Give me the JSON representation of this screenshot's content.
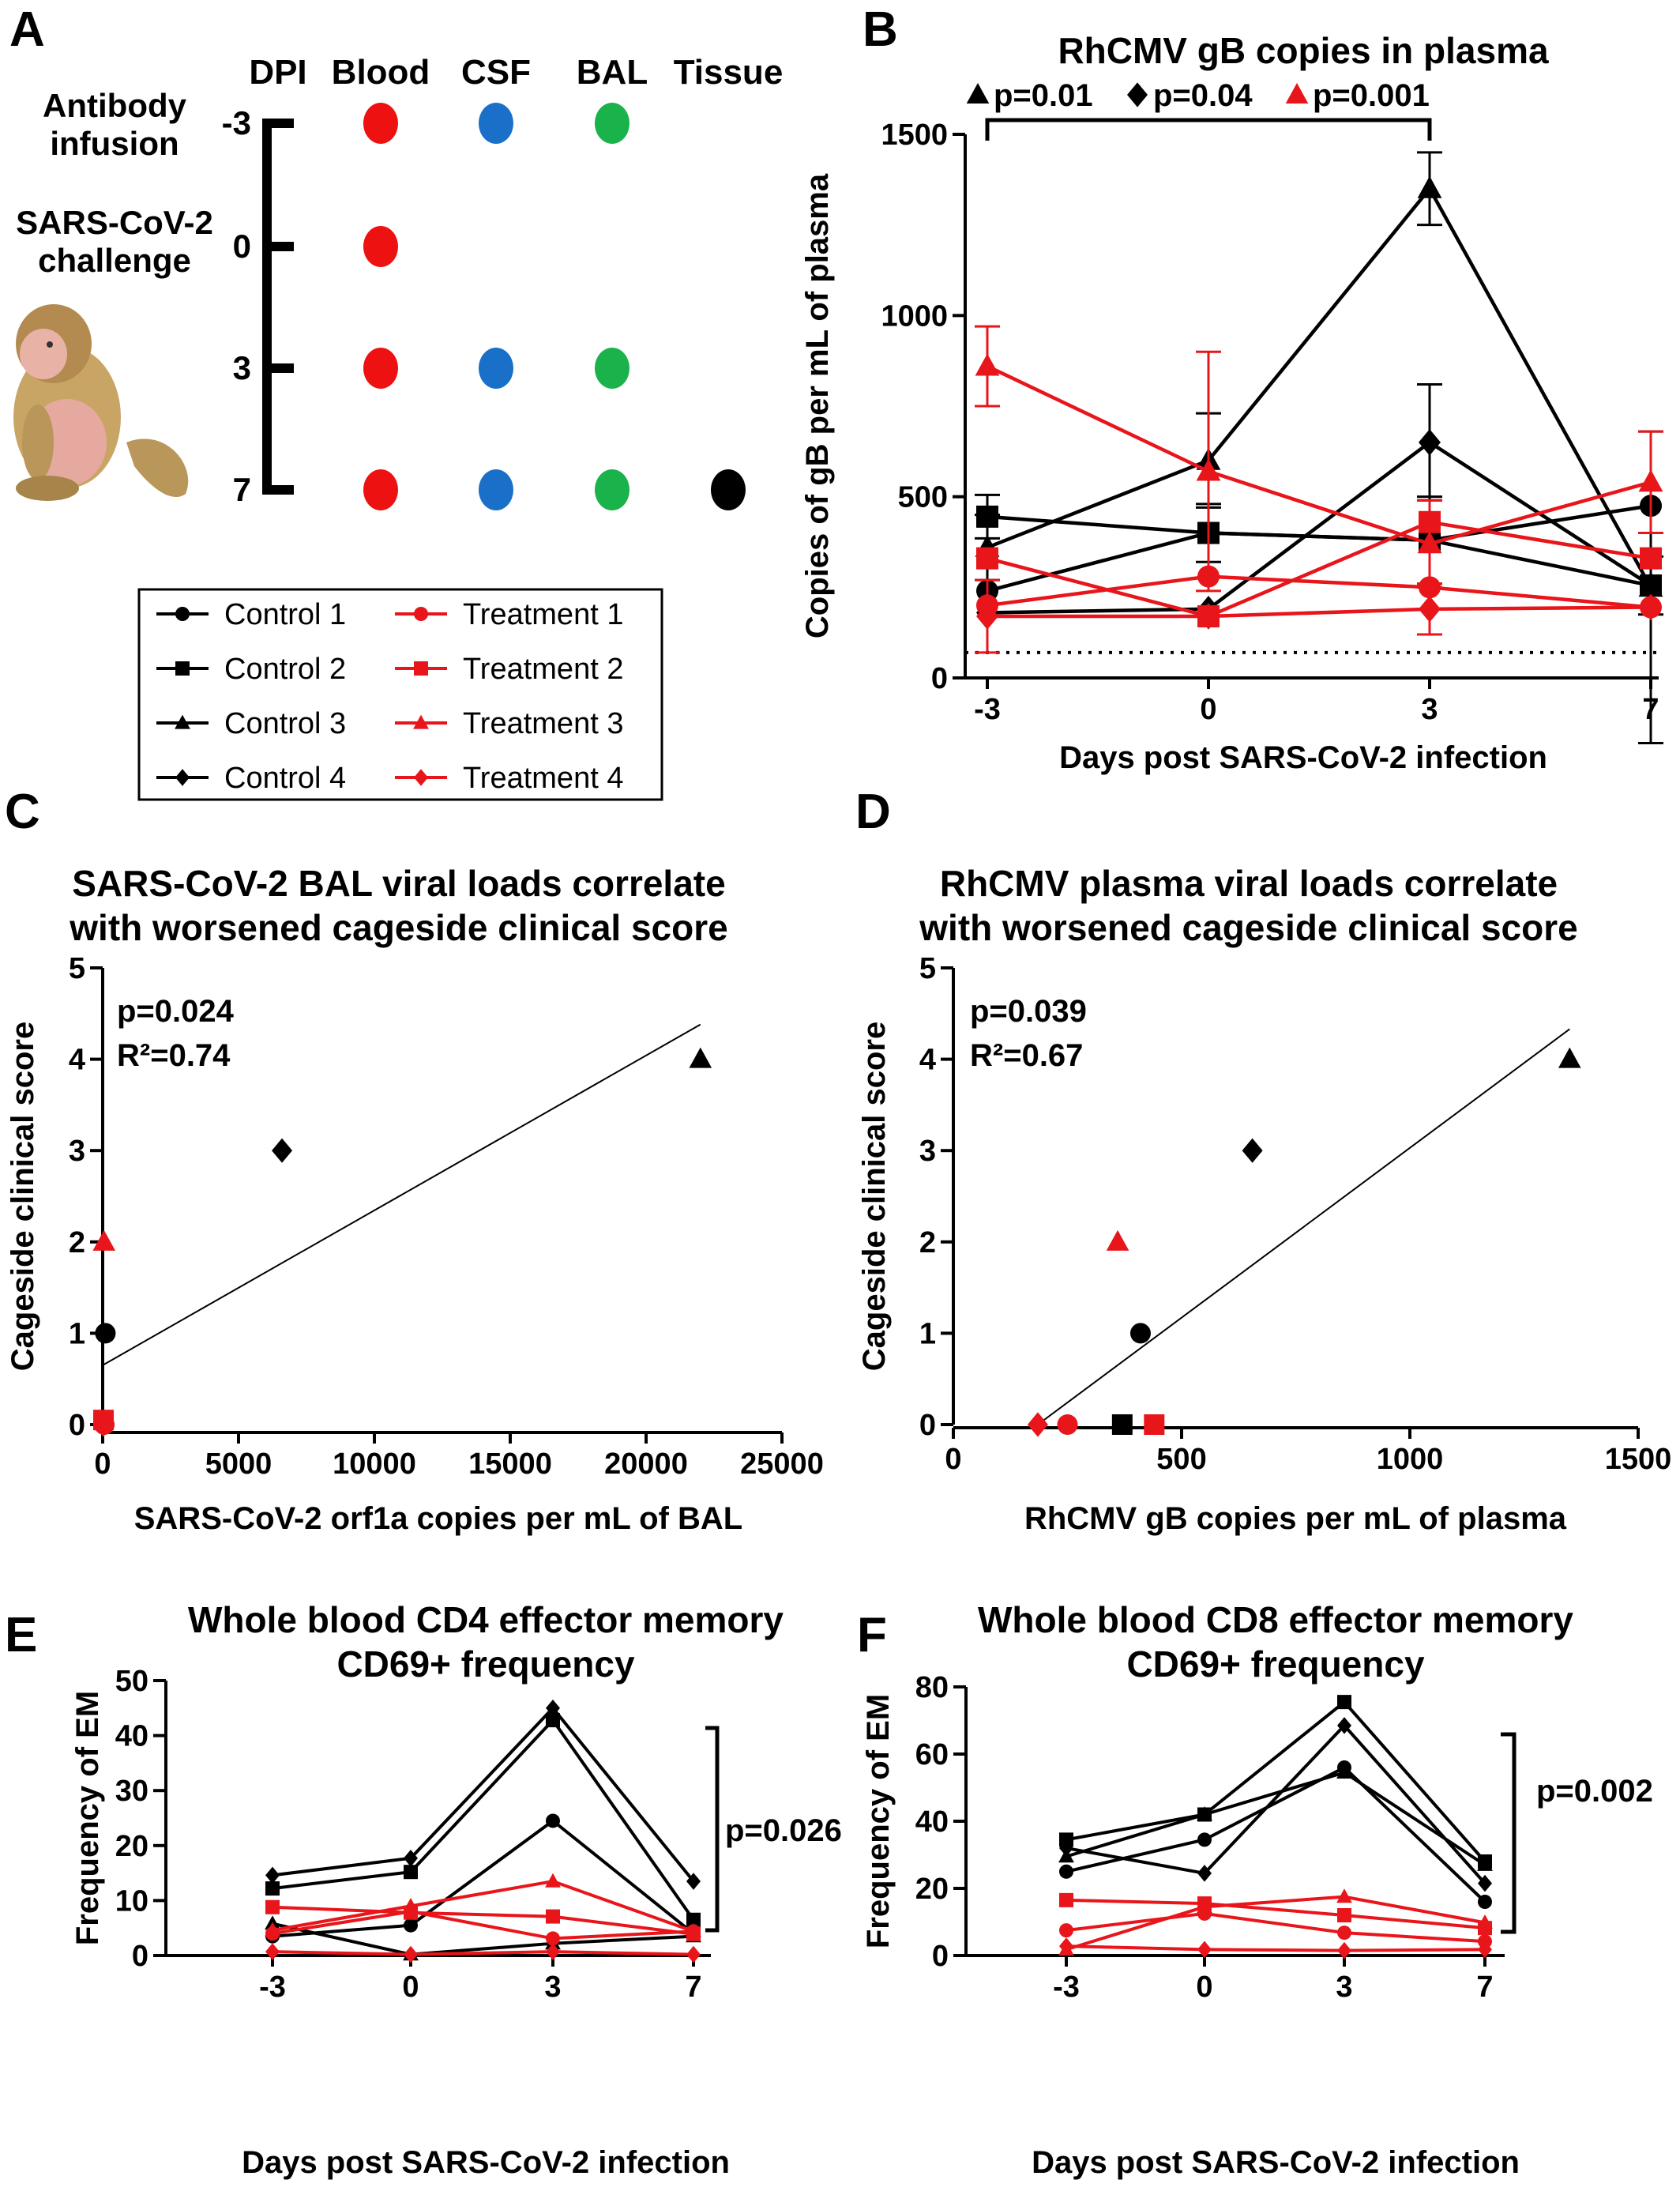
{
  "panel_labels": [
    "A",
    "B",
    "C",
    "D",
    "E",
    "F"
  ],
  "panel_a": {
    "headers": [
      "DPI",
      "Blood",
      "CSF",
      "BAL",
      "Tissue"
    ],
    "events": [
      "Antibody\ninfusion",
      "SARS-CoV-2\nchallenge"
    ],
    "rows": [
      {
        "dpi": "-3",
        "samples": [
          "Blood",
          "CSF",
          "BAL"
        ]
      },
      {
        "dpi": "0",
        "samples": [
          "Blood"
        ]
      },
      {
        "dpi": "3",
        "samples": [
          "Blood",
          "CSF",
          "BAL"
        ]
      },
      {
        "dpi": "7",
        "samples": [
          "Blood",
          "CSF",
          "BAL",
          "Tissue"
        ]
      }
    ],
    "sample_colors": {
      "Blood": "#ee1111",
      "CSF": "#1a6fc9",
      "BAL": "#19b24b",
      "Tissue": "#000000"
    }
  },
  "legend": [
    {
      "label": "Control 1",
      "marker": "circle",
      "color": "#000000"
    },
    {
      "label": "Treatment 1",
      "marker": "circle",
      "color": "#e8151b"
    },
    {
      "label": "Control 2",
      "marker": "square",
      "color": "#000000"
    },
    {
      "label": "Treatment 2",
      "marker": "square",
      "color": "#e8151b"
    },
    {
      "label": "Control 3",
      "marker": "triangle",
      "color": "#000000"
    },
    {
      "label": "Treatment 3",
      "marker": "triangle",
      "color": "#e8151b"
    },
    {
      "label": "Control 4",
      "marker": "diamond",
      "color": "#000000"
    },
    {
      "label": "Treatment 4",
      "marker": "diamond",
      "color": "#e8151b"
    }
  ],
  "colors": {
    "control": "#000000",
    "treatment": "#e8151b"
  },
  "chart_data": [
    {
      "id": "B",
      "type": "line",
      "title": "RhCMV gB copies in plasma",
      "xlabel": "Days post SARS-CoV-2 infection",
      "ylabel": "Copies of gB per mL of  plasma",
      "categories": [
        "-3",
        "0",
        "3",
        "7"
      ],
      "yticks": [
        "0",
        "500",
        "1000",
        "1500"
      ],
      "ylim": [
        0,
        1500
      ],
      "detection_limit": 70,
      "stats": [
        {
          "marker": "triangle",
          "color": "#000000",
          "text": "p=0.01"
        },
        {
          "marker": "diamond",
          "color": "#000000",
          "text": "p=0.04"
        },
        {
          "marker": "triangle",
          "color": "#e8151b",
          "text": "p=0.001"
        }
      ],
      "series": [
        {
          "name": "Control 1",
          "group": "control",
          "marker": "circle",
          "values": [
            240,
            400,
            380,
            475
          ],
          "errors": [
            0,
            0,
            0,
            0
          ]
        },
        {
          "name": "Control 2",
          "group": "control",
          "marker": "square",
          "values": [
            445,
            400,
            380,
            255
          ],
          "errors": [
            60,
            80,
            120,
            80
          ]
        },
        {
          "name": "Control 3",
          "group": "control",
          "marker": "triangle",
          "values": [
            360,
            600,
            1350,
            250
          ],
          "errors": [
            90,
            130,
            100,
            430
          ]
        },
        {
          "name": "Control 4",
          "group": "control",
          "marker": "diamond",
          "values": [
            180,
            190,
            650,
            255
          ],
          "errors": [
            0,
            0,
            160,
            0
          ]
        },
        {
          "name": "Treatment 1",
          "group": "treatment",
          "marker": "circle",
          "values": [
            200,
            280,
            250,
            195
          ],
          "errors": [
            0,
            0,
            0,
            0
          ]
        },
        {
          "name": "Treatment 2",
          "group": "treatment",
          "marker": "square",
          "values": [
            330,
            170,
            430,
            330
          ],
          "errors": [
            0,
            0,
            0,
            0
          ]
        },
        {
          "name": "Treatment 3",
          "group": "treatment",
          "marker": "triangle",
          "values": [
            860,
            570,
            370,
            540
          ],
          "errors": [
            110,
            330,
            120,
            140
          ]
        },
        {
          "name": "Treatment 4",
          "group": "treatment",
          "marker": "diamond",
          "values": [
            170,
            170,
            190,
            195
          ],
          "errors": [
            100,
            0,
            70,
            0
          ]
        }
      ]
    },
    {
      "id": "C",
      "type": "scatter",
      "title": [
        "SARS-CoV-2 BAL viral  loads correlate",
        " with worsened  cageside clinical score"
      ],
      "xlabel": "SARS-CoV-2 orf1a copies per mL of BAL",
      "ylabel": "Cageside clinical score",
      "xticks": [
        "0",
        "5000",
        "10000",
        "15000",
        "20000",
        "25000"
      ],
      "yticks": [
        "0",
        "1",
        "2",
        "3",
        "4",
        "5"
      ],
      "xlim": [
        0,
        25000
      ],
      "ylim": [
        0,
        5
      ],
      "p": "p=0.024",
      "r2": "R²=0.74",
      "fit": {
        "x": [
          0,
          22000
        ],
        "y": [
          0.65,
          4.38
        ]
      },
      "points": [
        {
          "name": "Control 1",
          "marker": "circle",
          "color": "#000000",
          "x": 100,
          "y": 1
        },
        {
          "name": "Control 4",
          "marker": "diamond",
          "color": "#000000",
          "x": 6600,
          "y": 3
        },
        {
          "name": "Control 3",
          "marker": "triangle",
          "color": "#000000",
          "x": 22000,
          "y": 4
        },
        {
          "name": "Treatment 3",
          "marker": "triangle",
          "color": "#e8151b",
          "x": 50,
          "y": 2
        },
        {
          "name": "Treatment 2",
          "marker": "square",
          "color": "#e8151b",
          "x": 30,
          "y": 0.05
        },
        {
          "name": "Treatment 1",
          "marker": "circle",
          "color": "#e8151b",
          "x": 60,
          "y": 0
        },
        {
          "name": "Treatment 4",
          "marker": "diamond",
          "color": "#e8151b",
          "x": 20,
          "y": 0
        }
      ]
    },
    {
      "id": "D",
      "type": "scatter",
      "title": [
        "RhCMV plasma  viral  loads correlate",
        "with worsened cageside clinical score"
      ],
      "xlabel": "RhCMV gB copies per mL of plasma",
      "ylabel": "Cageside  clinical score",
      "xticks": [
        "0",
        "500",
        "1000",
        "1500"
      ],
      "yticks": [
        "0",
        "1",
        "2",
        "3",
        "4",
        "5"
      ],
      "xlim": [
        0,
        1500
      ],
      "ylim": [
        0,
        5
      ],
      "p": "p=0.039",
      "r2": "R²=0.67",
      "fit": {
        "x": [
          185,
          1350
        ],
        "y": [
          0,
          4.33
        ]
      },
      "points": [
        {
          "name": "Treatment 4",
          "marker": "diamond",
          "color": "#e8151b",
          "x": 185,
          "y": 0
        },
        {
          "name": "Treatment 1",
          "marker": "circle",
          "color": "#e8151b",
          "x": 250,
          "y": 0
        },
        {
          "name": "Control 2",
          "marker": "square",
          "color": "#000000",
          "x": 370,
          "y": 0
        },
        {
          "name": "Treatment 2",
          "marker": "square",
          "color": "#e8151b",
          "x": 440,
          "y": 0
        },
        {
          "name": "Control 1",
          "marker": "circle",
          "color": "#000000",
          "x": 410,
          "y": 1
        },
        {
          "name": "Treatment 3",
          "marker": "triangle",
          "color": "#e8151b",
          "x": 360,
          "y": 2
        },
        {
          "name": "Control 4",
          "marker": "diamond",
          "color": "#000000",
          "x": 655,
          "y": 3
        },
        {
          "name": "Control 3",
          "marker": "triangle",
          "color": "#000000",
          "x": 1350,
          "y": 4
        }
      ]
    },
    {
      "id": "E",
      "type": "line",
      "title": [
        "Whole blood CD4 effector memory",
        "CD69+ frequency"
      ],
      "xlabel": "Days post SARS-CoV-2 infection",
      "ylabel": "Frequency of EM",
      "categories": [
        "-3",
        "0",
        "3",
        "7"
      ],
      "yticks": [
        "0",
        "10",
        "20",
        "30",
        "40",
        "50"
      ],
      "ylim": [
        0,
        50
      ],
      "p": "p=0.026",
      "series": [
        {
          "name": "Control 1",
          "group": "control",
          "marker": "circle",
          "values": [
            3.5,
            5.5,
            24.5,
            4
          ]
        },
        {
          "name": "Control 2",
          "group": "control",
          "marker": "square",
          "values": [
            12.2,
            15.2,
            42.8,
            6.5
          ]
        },
        {
          "name": "Control 3",
          "group": "control",
          "marker": "triangle",
          "values": [
            5.8,
            0.2,
            2.2,
            3.5
          ]
        },
        {
          "name": "Control 4",
          "group": "control",
          "marker": "diamond",
          "values": [
            14.6,
            17.7,
            45,
            13.5
          ]
        },
        {
          "name": "Treatment 1",
          "group": "treatment",
          "marker": "circle",
          "values": [
            4,
            8,
            3.1,
            4.4
          ]
        },
        {
          "name": "Treatment 2",
          "group": "treatment",
          "marker": "square",
          "values": [
            8.8,
            7.8,
            7.1,
            3.9
          ]
        },
        {
          "name": "Treatment 3",
          "group": "treatment",
          "marker": "triangle",
          "values": [
            4.6,
            9,
            13.5,
            4.4
          ]
        },
        {
          "name": "Treatment 4",
          "group": "treatment",
          "marker": "diamond",
          "values": [
            0.7,
            0.2,
            0.7,
            0.2
          ]
        }
      ]
    },
    {
      "id": "F",
      "type": "line",
      "title": [
        "Whole blood CD8 effector memory",
        "CD69+ frequency"
      ],
      "xlabel": "Days post SARS-CoV-2 infection",
      "ylabel": "Frequency of EM",
      "categories": [
        "-3",
        "0",
        "3",
        "7"
      ],
      "yticks": [
        "0",
        "20",
        "40",
        "60",
        "80"
      ],
      "ylim": [
        0,
        80
      ],
      "p": "p=0.002",
      "series": [
        {
          "name": "Control 1",
          "group": "control",
          "marker": "circle",
          "values": [
            25,
            34.5,
            56,
            16
          ]
        },
        {
          "name": "Control 2",
          "group": "control",
          "marker": "square",
          "values": [
            34.5,
            42,
            75.5,
            28
          ]
        },
        {
          "name": "Control 3",
          "group": "control",
          "marker": "triangle",
          "values": [
            29.5,
            42,
            54.5,
            27
          ]
        },
        {
          "name": "Control 4",
          "group": "control",
          "marker": "diamond",
          "values": [
            32,
            24.5,
            68.5,
            21.5
          ]
        },
        {
          "name": "Treatment 1",
          "group": "treatment",
          "marker": "circle",
          "values": [
            7.5,
            12.5,
            6.8,
            4.2
          ]
        },
        {
          "name": "Treatment 2",
          "group": "treatment",
          "marker": "square",
          "values": [
            16.5,
            15.5,
            12,
            8.2
          ]
        },
        {
          "name": "Treatment 3",
          "group": "treatment",
          "marker": "triangle",
          "values": [
            1.8,
            14.5,
            17.5,
            9.8
          ]
        },
        {
          "name": "Treatment 4",
          "group": "treatment",
          "marker": "diamond",
          "values": [
            2.8,
            1.8,
            1.5,
            1.8
          ]
        }
      ]
    }
  ]
}
